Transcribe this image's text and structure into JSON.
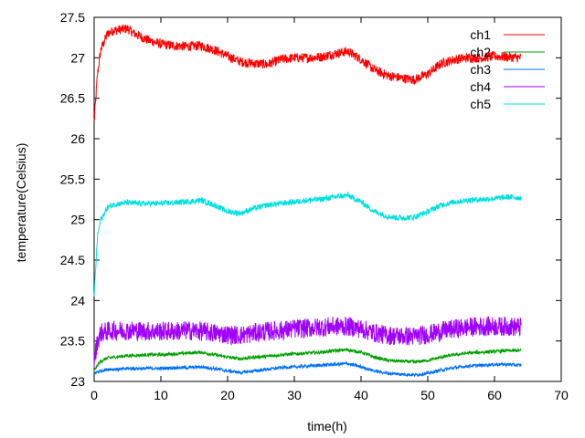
{
  "chart_data": {
    "type": "line",
    "xlabel": "time(h)",
    "ylabel": "temperature(Celsius)",
    "xlim": [
      0,
      70
    ],
    "ylim": [
      23,
      27.5
    ],
    "xticks": [
      "0",
      "10",
      "20",
      "30",
      "40",
      "50",
      "60",
      "70"
    ],
    "yticks": [
      "23",
      "23.5",
      "24",
      "24.5",
      "25",
      "25.5",
      "26",
      "26.5",
      "27",
      "27.5"
    ],
    "grid": false,
    "legend_position": "top-right",
    "x": [
      0,
      0.5,
      1,
      2,
      3,
      4,
      5,
      6,
      8,
      10,
      12,
      14,
      16,
      18,
      20,
      22,
      24,
      26,
      28,
      30,
      32,
      34,
      36,
      38,
      40,
      42,
      44,
      46,
      48,
      50,
      52,
      54,
      56,
      58,
      60,
      62,
      64
    ],
    "series": [
      {
        "name": "ch1",
        "color": "#ff0000",
        "noise": 0.06,
        "values": [
          26.2,
          26.8,
          27.1,
          27.3,
          27.34,
          27.35,
          27.36,
          27.3,
          27.22,
          27.17,
          27.15,
          27.14,
          27.15,
          27.1,
          27.02,
          26.95,
          26.93,
          26.92,
          26.98,
          27.0,
          27.0,
          27.01,
          27.05,
          27.08,
          26.98,
          26.85,
          26.78,
          26.75,
          26.73,
          26.8,
          26.93,
          26.98,
          27.0,
          27.0,
          27.02,
          27.01,
          27.0
        ]
      },
      {
        "name": "ch2",
        "color": "#00a000",
        "noise": 0.02,
        "values": [
          23.13,
          23.2,
          23.25,
          23.29,
          23.3,
          23.31,
          23.32,
          23.32,
          23.33,
          23.33,
          23.34,
          23.35,
          23.36,
          23.33,
          23.3,
          23.28,
          23.3,
          23.31,
          23.33,
          23.34,
          23.35,
          23.36,
          23.38,
          23.39,
          23.36,
          23.3,
          23.26,
          23.25,
          23.24,
          23.26,
          23.3,
          23.33,
          23.35,
          23.36,
          23.37,
          23.38,
          23.38
        ]
      },
      {
        "name": "ch3",
        "color": "#0070ff",
        "noise": 0.02,
        "values": [
          23.1,
          23.12,
          23.13,
          23.15,
          23.15,
          23.15,
          23.16,
          23.16,
          23.16,
          23.16,
          23.17,
          23.17,
          23.18,
          23.16,
          23.13,
          23.11,
          23.13,
          23.15,
          23.17,
          23.18,
          23.19,
          23.2,
          23.21,
          23.22,
          23.18,
          23.13,
          23.1,
          23.09,
          23.08,
          23.1,
          23.14,
          23.17,
          23.19,
          23.2,
          23.21,
          23.21,
          23.2
        ]
      },
      {
        "name": "ch4",
        "color": "#a000ff",
        "noise": 0.12,
        "values": [
          23.25,
          23.5,
          23.6,
          23.62,
          23.63,
          23.63,
          23.63,
          23.63,
          23.62,
          23.62,
          23.62,
          23.63,
          23.62,
          23.6,
          23.58,
          23.57,
          23.6,
          23.62,
          23.63,
          23.65,
          23.66,
          23.67,
          23.68,
          23.68,
          23.65,
          23.6,
          23.57,
          23.56,
          23.56,
          23.58,
          23.62,
          23.65,
          23.67,
          23.68,
          23.68,
          23.68,
          23.67
        ]
      },
      {
        "name": "ch5",
        "color": "#00e0e0",
        "noise": 0.035,
        "values": [
          24.05,
          24.8,
          25.0,
          25.15,
          25.19,
          25.2,
          25.21,
          25.2,
          25.2,
          25.2,
          25.21,
          25.22,
          25.24,
          25.18,
          25.1,
          25.08,
          25.14,
          25.18,
          25.2,
          25.22,
          25.24,
          25.25,
          25.28,
          25.3,
          25.22,
          25.1,
          25.04,
          25.02,
          25.03,
          25.1,
          25.18,
          25.22,
          25.24,
          25.25,
          25.26,
          25.28,
          25.27
        ]
      }
    ]
  }
}
